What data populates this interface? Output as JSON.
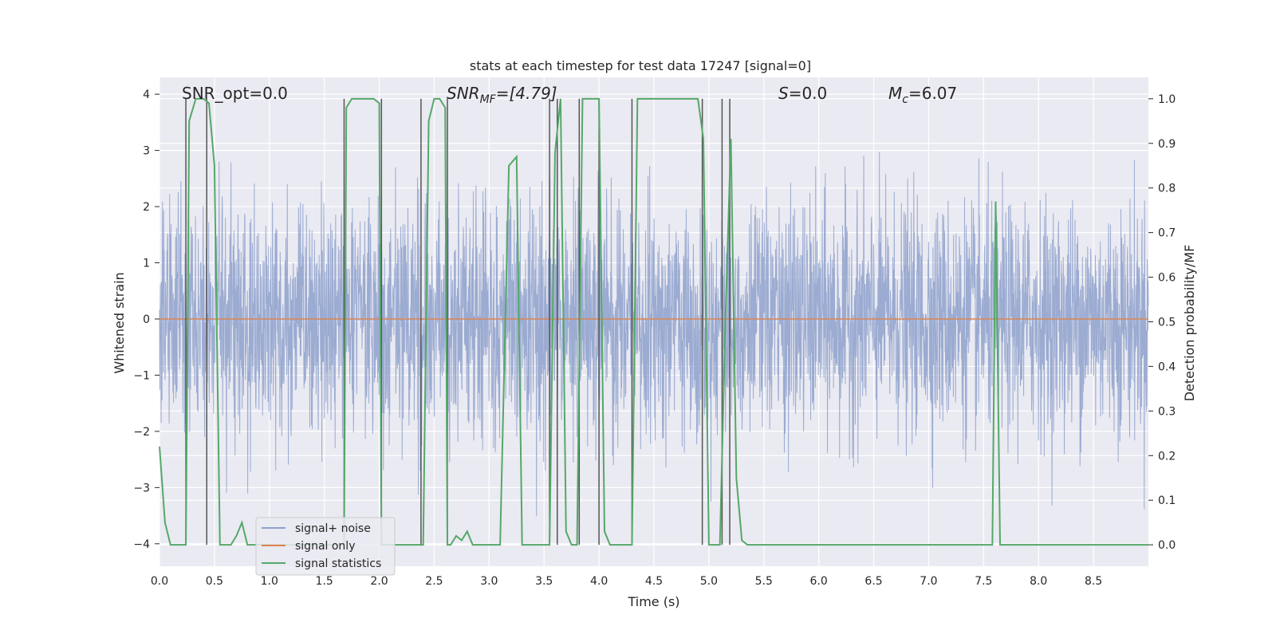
{
  "chart_data": {
    "type": "line",
    "title": "stats at each timestep for test data 17247 [signal=0]",
    "xlabel": "Time (s)",
    "ylabel": "Whitened strain",
    "y2label": "Detection probability/MF",
    "xlim": [
      0,
      9.0
    ],
    "ylim": [
      -4.4,
      4.3
    ],
    "y2lim": [
      -0.048,
      1.048
    ],
    "xticks": [
      0.0,
      0.5,
      1.0,
      1.5,
      2.0,
      2.5,
      3.0,
      3.5,
      4.0,
      4.5,
      5.0,
      5.5,
      6.0,
      6.5,
      7.0,
      7.5,
      8.0,
      8.5
    ],
    "xtick_labels": [
      "0.0",
      "0.5",
      "1.0",
      "1.5",
      "2.0",
      "2.5",
      "3.0",
      "3.5",
      "4.0",
      "4.5",
      "5.0",
      "5.5",
      "6.0",
      "6.5",
      "7.0",
      "7.5",
      "8.0",
      "8.5"
    ],
    "yticks": [
      -4,
      -3,
      -2,
      -1,
      0,
      1,
      2,
      3,
      4
    ],
    "ytick_labels": [
      "−4",
      "−3",
      "−2",
      "−1",
      "0",
      "1",
      "2",
      "3",
      "4"
    ],
    "y2ticks": [
      0.0,
      0.1,
      0.2,
      0.3,
      0.4,
      0.5,
      0.6,
      0.7,
      0.8,
      0.9,
      1.0
    ],
    "y2tick_labels": [
      "0.0",
      "0.1",
      "0.2",
      "0.3",
      "0.4",
      "0.5",
      "0.6",
      "0.7",
      "0.8",
      "0.9",
      "1.0"
    ],
    "annotations": {
      "snr_opt": "SNR_opt=0.0",
      "snr_mf_main": "SNR",
      "snr_mf_sub": "MF",
      "snr_mf_rest": "=[4.79]",
      "s_main": "S",
      "s_rest": "=0.0",
      "mc_main": "M",
      "mc_sub": "c",
      "mc_rest": "=6.07"
    },
    "grid": true,
    "legend_position": "lower-left",
    "colors": {
      "noise": "#8da0cb",
      "signal": "#dd8452",
      "stats": "#55a868",
      "markers": "#555555",
      "background": "#eaeaf2",
      "grid": "#ffffff"
    },
    "series": [
      {
        "name": "signal+ noise",
        "axis": "left",
        "description_values": "whitened noise samples, roughly N(0,1), spanning about -4 to 4",
        "x_range": [
          0,
          9.0
        ]
      },
      {
        "name": "signal only",
        "axis": "left",
        "x": [
          0,
          9.0
        ],
        "y": [
          0,
          0
        ]
      },
      {
        "name": "signal statistics",
        "axis": "right",
        "x": [
          0.0,
          0.05,
          0.1,
          0.24,
          0.27,
          0.33,
          0.4,
          0.45,
          0.5,
          0.55,
          0.6,
          0.65,
          0.7,
          0.75,
          0.8,
          1.0,
          1.2,
          1.68,
          1.7,
          1.75,
          1.95,
          2.0,
          2.02,
          2.4,
          2.45,
          2.5,
          2.55,
          2.6,
          2.62,
          2.65,
          2.7,
          2.75,
          2.8,
          2.85,
          2.9,
          3.1,
          3.18,
          3.25,
          3.3,
          3.55,
          3.6,
          3.65,
          3.7,
          3.75,
          3.8,
          3.85,
          3.95,
          4.0,
          4.05,
          4.1,
          4.2,
          4.3,
          4.35,
          4.9,
          4.95,
          5.0,
          5.05,
          5.1,
          5.15,
          5.2,
          5.25,
          5.3,
          5.35,
          7.5,
          7.58,
          7.61,
          7.65,
          7.7,
          8.0,
          8.6,
          8.7,
          9.0
        ],
        "y": [
          0.22,
          0.05,
          0.0,
          0.0,
          0.95,
          1.0,
          1.0,
          0.99,
          0.85,
          0.0,
          0.0,
          0.0,
          0.02,
          0.05,
          0.0,
          0.0,
          0.0,
          0.0,
          0.98,
          1.0,
          1.0,
          0.99,
          0.0,
          0.0,
          0.95,
          1.0,
          1.0,
          0.98,
          0.0,
          0.0,
          0.02,
          0.01,
          0.03,
          0.0,
          0.0,
          0.0,
          0.85,
          0.87,
          0.0,
          0.0,
          0.88,
          1.0,
          0.03,
          0.0,
          0.0,
          1.0,
          1.0,
          1.0,
          0.03,
          0.0,
          0.0,
          0.0,
          1.0,
          1.0,
          0.91,
          0.0,
          0.0,
          0.0,
          0.5,
          0.91,
          0.15,
          0.01,
          0.0,
          0.0,
          0.0,
          0.77,
          0.0,
          0.0,
          0.0,
          0.0,
          0.0,
          0.0
        ]
      }
    ],
    "vertical_markers_s": [
      0.24,
      0.43,
      1.68,
      2.02,
      2.38,
      2.62,
      3.55,
      3.62,
      3.82,
      4.0,
      4.3,
      4.94,
      5.12,
      5.19
    ]
  }
}
